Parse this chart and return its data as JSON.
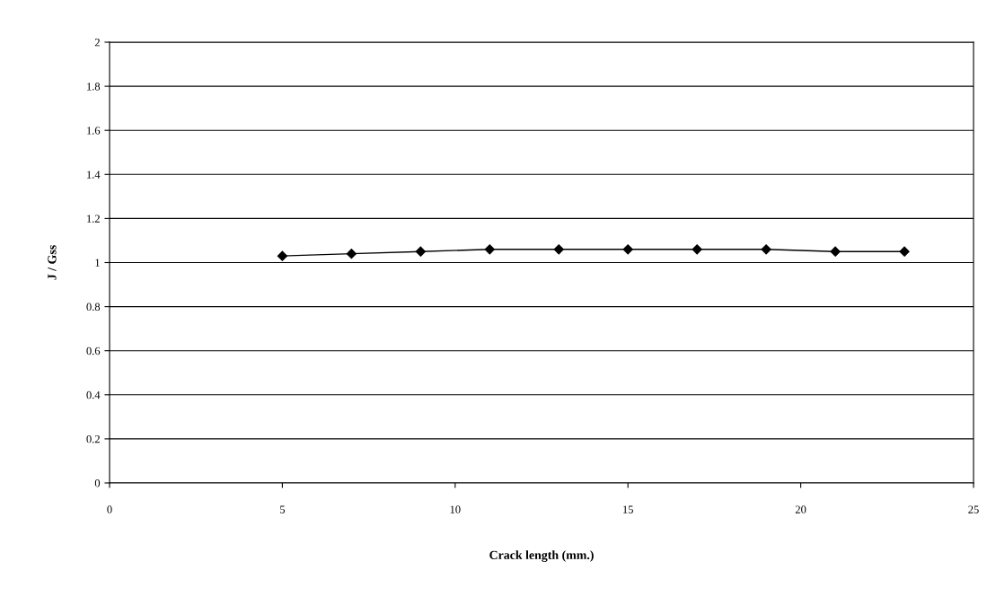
{
  "chart_data": {
    "type": "line",
    "xlabel": "Crack length (mm.)",
    "ylabel": "J / Gss",
    "x": [
      5,
      7,
      9,
      11,
      13,
      15,
      17,
      19,
      21,
      23
    ],
    "series": [
      {
        "color": "#000000",
        "values": [
          1.03,
          1.04,
          1.05,
          1.06,
          1.06,
          1.06,
          1.06,
          1.06,
          1.05,
          1.05
        ]
      }
    ],
    "xlim": [
      0,
      25
    ],
    "xticks": [
      0,
      5,
      10,
      15,
      20,
      25
    ],
    "ylim": [
      0,
      2
    ],
    "yticks": [
      0,
      0.2,
      0.4,
      0.6,
      0.8,
      1,
      1.2,
      1.4,
      1.6,
      1.8,
      2
    ],
    "grid": "y",
    "marker": "diamond",
    "line_style": "solid",
    "legend": false
  }
}
